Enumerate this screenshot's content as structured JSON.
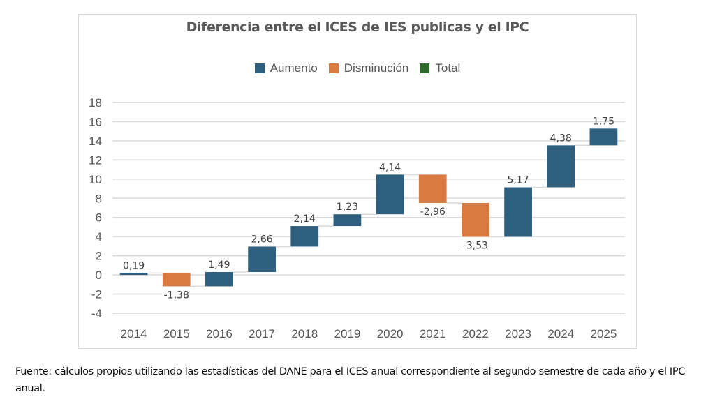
{
  "chart_data": {
    "type": "waterfall",
    "title": "Diferencia entre el ICES de IES publicas y el IPC",
    "legend": [
      {
        "label": "Aumento",
        "color": "#2e5f7f"
      },
      {
        "label": "Disminución",
        "color": "#d97a40"
      },
      {
        "label": "Total",
        "color": "#2f6b2f"
      }
    ],
    "legend_position": "top",
    "categories": [
      "2014",
      "2015",
      "2016",
      "2017",
      "2018",
      "2019",
      "2020",
      "2021",
      "2022",
      "2023",
      "2024",
      "2025"
    ],
    "values": [
      0.19,
      -1.38,
      1.49,
      2.66,
      2.14,
      1.23,
      4.14,
      -2.96,
      -3.53,
      5.17,
      4.38,
      1.75
    ],
    "value_labels": [
      "0,19",
      "-1,38",
      "1,49",
      "2,66",
      "2,14",
      "1,23",
      "4,14",
      "-2,96",
      "-3,53",
      "5,17",
      "4,38",
      "1,75"
    ],
    "ylim": [
      -4,
      18
    ],
    "yticks": [
      18,
      16,
      14,
      12,
      10,
      8,
      6,
      4,
      2,
      0,
      -2,
      -4
    ],
    "grid": true,
    "xlabel": "",
    "ylabel": ""
  },
  "source_note": "Fuente: cálculos propios utilizando las estadísticas del DANE para el ICES anual correspondiente al segundo semestre de cada año y el IPC anual."
}
